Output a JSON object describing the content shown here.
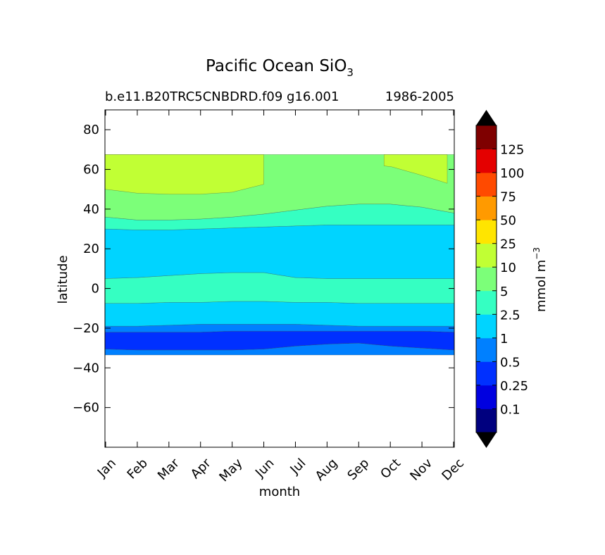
{
  "chart_data": {
    "type": "filled-contour",
    "title": "Pacific Ocean SiO",
    "title_subscript": "3",
    "subtitle_left": "b.e11.B20TRC5CNBDRD.f09 g16.001",
    "subtitle_right": "1986-2005",
    "xlabel": "month",
    "ylabel": "latitude",
    "x_ticks": [
      "Jan",
      "Feb",
      "Mar",
      "Apr",
      "May",
      "Jun",
      "Jul",
      "Aug",
      "Sep",
      "Oct",
      "Nov",
      "Dec"
    ],
    "ylim": [
      -80,
      90
    ],
    "y_ticks": [
      80,
      60,
      40,
      20,
      0,
      -20,
      -40,
      -60
    ],
    "y_tick_labels": [
      "80",
      "60",
      "40",
      "20",
      "0",
      "−20",
      "−40",
      "−60"
    ],
    "colorbar": {
      "label": "mmol m",
      "label_superscript": "−3",
      "levels": [
        "0.1",
        "0.25",
        "0.5",
        "1",
        "2.5",
        "5",
        "10",
        "25",
        "50",
        "75",
        "100",
        "125"
      ],
      "colors": [
        "#00007f",
        "#0000e0",
        "#0030ff",
        "#0080ff",
        "#00d4ff",
        "#35ffc2",
        "#7cff79",
        "#c1ff34",
        "#ffe500",
        "#ff9a00",
        "#ff4a00",
        "#e40000",
        "#7f0000"
      ],
      "extend": "both"
    },
    "data_extent_lat": [
      -34,
      67.5
    ],
    "bands": [
      {
        "fill": "#0080ff",
        "bottom": [
          -33.5,
          -33.5,
          -33.5,
          -33.5,
          -33.5,
          -33.5,
          -33.5,
          -33.5,
          -33.5,
          -33.5,
          -33.5,
          -33.5
        ],
        "top": [
          -30.5,
          -31,
          -31,
          -31,
          -31,
          -30.5,
          -29,
          -28,
          -27.5,
          -29,
          -30,
          -31
        ]
      },
      {
        "fill": "#0030ff",
        "bottom": [
          -30.5,
          -31,
          -31,
          -31,
          -31,
          -30.5,
          -29,
          -28,
          -27.5,
          -29,
          -30,
          -31
        ],
        "top": [
          -22,
          -22,
          -22,
          -22,
          -21.5,
          -21.5,
          -21.5,
          -21.5,
          -21.5,
          -21.5,
          -21.5,
          -22
        ]
      },
      {
        "fill": "#0080ff",
        "bottom": [
          -22,
          -22,
          -22,
          -22,
          -21.5,
          -21.5,
          -21.5,
          -21.5,
          -21.5,
          -21.5,
          -21.5,
          -22
        ],
        "top": [
          -19,
          -19,
          -18.5,
          -18,
          -18,
          -18,
          -18,
          -18.5,
          -19,
          -19,
          -19,
          -19
        ]
      },
      {
        "fill": "#00d4ff",
        "bottom": [
          -19,
          -19,
          -18.5,
          -18,
          -18,
          -18,
          -18,
          -18.5,
          -19,
          -19,
          -19,
          -19
        ],
        "top": [
          -7.5,
          -7.5,
          -7,
          -7,
          -6.5,
          -6.5,
          -7,
          -7,
          -7.5,
          -7.5,
          -7.5,
          -7.5
        ]
      },
      {
        "fill": "#35ffc2",
        "bottom": [
          -7.5,
          -7.5,
          -7,
          -7,
          -6.5,
          -6.5,
          -7,
          -7,
          -7.5,
          -7.5,
          -7.5,
          -7.5
        ],
        "top": [
          5,
          5.5,
          6.5,
          7.5,
          8,
          8,
          5.5,
          5,
          5,
          5,
          5,
          5
        ]
      },
      {
        "fill": "#00d4ff",
        "bottom": [
          5,
          5.5,
          6.5,
          7.5,
          8,
          8,
          5.5,
          5,
          5,
          5,
          5,
          5
        ],
        "top": [
          30,
          29.5,
          29.5,
          30,
          30.5,
          31,
          31.5,
          32,
          32,
          32,
          32,
          32
        ]
      },
      {
        "fill": "#35ffc2",
        "bottom": [
          30,
          29.5,
          29.5,
          30,
          30.5,
          31,
          31.5,
          32,
          32,
          32,
          32,
          32
        ],
        "top": [
          36,
          34.5,
          34.5,
          35,
          36,
          37.5,
          39.5,
          41.5,
          42.5,
          42.5,
          41,
          38
        ]
      },
      {
        "fill": "#7cff79",
        "bottom": [
          36,
          34.5,
          34.5,
          35,
          36,
          37.5,
          39.5,
          41.5,
          42.5,
          42.5,
          41,
          38
        ],
        "top": [
          67.5,
          67.5,
          67.5,
          67.5,
          67.5,
          67.5,
          67.5,
          67.5,
          67.5,
          67.5,
          67.5,
          67.5
        ]
      },
      {
        "fill": "#c1ff34",
        "bottom": [
          50,
          48,
          47.5,
          47.5,
          48.5,
          52.5,
          60,
          62,
          62,
          61,
          57,
          52
        ],
        "top": [
          67.5,
          67.5,
          67.5,
          67.5,
          67.5,
          67.5,
          67.5,
          67.5,
          67.5,
          67.5,
          67.5,
          67.5
        ],
        "x_range": [
          0,
          5
        ]
      },
      {
        "fill": "#c1ff34",
        "bottom": [
          50,
          48,
          47.5,
          47.5,
          48.5,
          52.5,
          60,
          62,
          63,
          61.5,
          57,
          52
        ],
        "top": [
          67.5,
          67.5,
          67.5,
          67.5,
          67.5,
          67.5,
          67.5,
          67.5,
          67.5,
          67.5,
          67.5,
          67.5
        ],
        "x_range": [
          8.8,
          11
        ]
      }
    ]
  }
}
